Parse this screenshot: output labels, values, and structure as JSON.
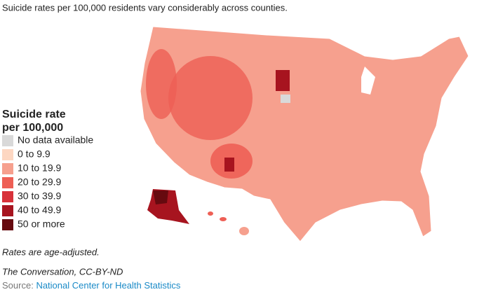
{
  "header": {
    "title": "Suicide rates per 100,000 residents vary considerably across counties."
  },
  "legend": {
    "title_lines": [
      "Suicide rate",
      "per 100,000"
    ],
    "items": [
      {
        "label": "No data available",
        "color": "#d9d9d9"
      },
      {
        "label": "0 to 9.9",
        "color": "#fdd7c2"
      },
      {
        "label": "10 to 19.9",
        "color": "#f6a08e"
      },
      {
        "label": "20 to 29.9",
        "color": "#ee5f55"
      },
      {
        "label": "30 to 39.9",
        "color": "#d8323a"
      },
      {
        "label": "40 to 49.9",
        "color": "#a7141f"
      },
      {
        "label": "50 or more",
        "color": "#660a0f"
      }
    ]
  },
  "footer": {
    "note": "Rates are age-adjusted.",
    "credit": "The Conversation, CC-BY-ND",
    "source_label": "Source:",
    "source_link": "National Center for Health Statistics"
  }
}
